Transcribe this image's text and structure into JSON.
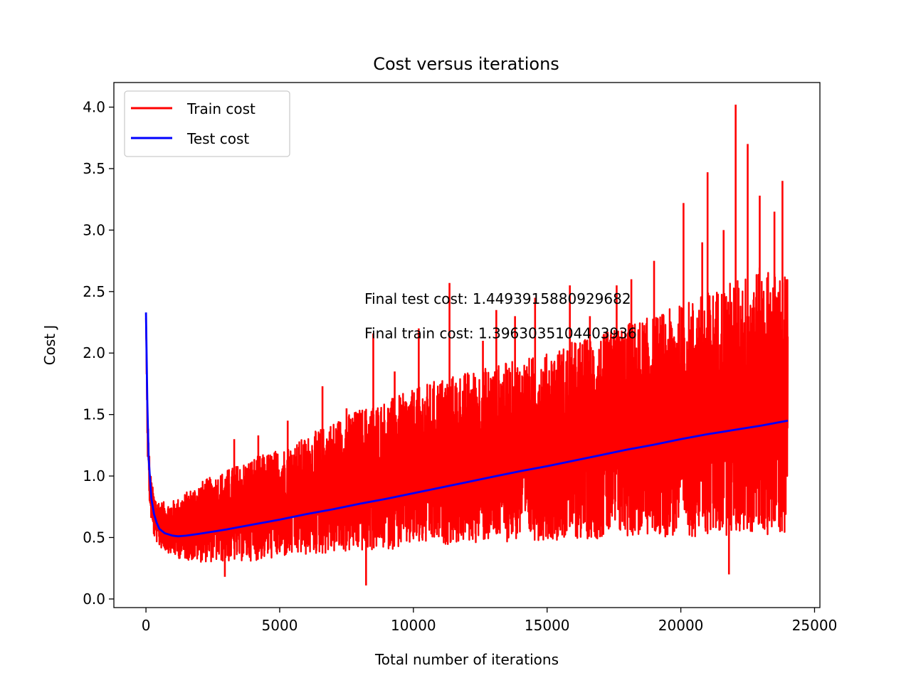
{
  "chart_data": {
    "type": "line",
    "title": "Cost versus iterations",
    "xlabel": "Total number of iterations",
    "ylabel": "Cost J",
    "xlim": [
      -1200,
      25200
    ],
    "ylim": [
      -0.07,
      4.2
    ],
    "x_ticks": [
      0,
      5000,
      10000,
      15000,
      20000,
      25000
    ],
    "y_ticks": [
      0.0,
      0.5,
      1.0,
      1.5,
      2.0,
      2.5,
      3.0,
      3.5,
      4.0
    ],
    "x_tick_labels": [
      "0",
      "5000",
      "10000",
      "15000",
      "20000",
      "25000"
    ],
    "y_tick_labels": [
      "0.0",
      "0.5",
      "1.0",
      "1.5",
      "2.0",
      "2.5",
      "3.0",
      "3.5",
      "4.0"
    ],
    "grid": false,
    "legend": "top-left",
    "series": [
      {
        "name": "Train cost",
        "color": "#ff0000",
        "style": "noisy-band",
        "x": [
          0,
          60,
          150,
          300,
          500,
          800,
          1200,
          2000,
          3000,
          4000,
          5000,
          6000,
          7000,
          8000,
          9000,
          10000,
          11000,
          12000,
          13000,
          14000,
          15000,
          16000,
          17000,
          18000,
          19000,
          20000,
          21000,
          22000,
          23000,
          24000
        ],
        "upper": [
          2.3,
          1.55,
          1.05,
          0.85,
          0.8,
          0.78,
          0.82,
          0.95,
          1.05,
          1.15,
          1.22,
          1.32,
          1.45,
          1.55,
          1.62,
          1.7,
          1.8,
          1.85,
          1.9,
          1.95,
          2.0,
          2.1,
          2.15,
          2.25,
          2.3,
          2.4,
          2.5,
          2.6,
          2.7,
          2.65
        ],
        "lower": [
          2.2,
          1.15,
          0.7,
          0.5,
          0.42,
          0.38,
          0.33,
          0.3,
          0.3,
          0.31,
          0.33,
          0.35,
          0.37,
          0.38,
          0.4,
          0.42,
          0.44,
          0.45,
          0.46,
          0.47,
          0.48,
          0.48,
          0.49,
          0.5,
          0.5,
          0.5,
          0.51,
          0.52,
          0.52,
          0.52
        ],
        "spikes": [
          {
            "x": 2950,
            "y": 0.18
          },
          {
            "x": 3300,
            "y": 1.3
          },
          {
            "x": 4200,
            "y": 1.33
          },
          {
            "x": 5300,
            "y": 1.45
          },
          {
            "x": 6600,
            "y": 1.73
          },
          {
            "x": 7500,
            "y": 1.55
          },
          {
            "x": 8230,
            "y": 0.11
          },
          {
            "x": 8500,
            "y": 2.16
          },
          {
            "x": 9300,
            "y": 1.85
          },
          {
            "x": 10200,
            "y": 2.2
          },
          {
            "x": 11350,
            "y": 2.57
          },
          {
            "x": 12600,
            "y": 2.1
          },
          {
            "x": 13100,
            "y": 2.35
          },
          {
            "x": 13800,
            "y": 2.3
          },
          {
            "x": 14550,
            "y": 2.45
          },
          {
            "x": 15850,
            "y": 2.55
          },
          {
            "x": 16600,
            "y": 2.3
          },
          {
            "x": 17600,
            "y": 2.55
          },
          {
            "x": 18150,
            "y": 2.6
          },
          {
            "x": 19000,
            "y": 2.75
          },
          {
            "x": 20100,
            "y": 3.22
          },
          {
            "x": 20800,
            "y": 2.9
          },
          {
            "x": 21000,
            "y": 3.47
          },
          {
            "x": 21600,
            "y": 3.0
          },
          {
            "x": 21800,
            "y": 0.2
          },
          {
            "x": 22050,
            "y": 4.02
          },
          {
            "x": 22500,
            "y": 3.7
          },
          {
            "x": 22950,
            "y": 3.28
          },
          {
            "x": 23500,
            "y": 3.15
          },
          {
            "x": 23800,
            "y": 3.4
          },
          {
            "x": 23950,
            "y": 2.6
          }
        ]
      },
      {
        "name": "Test cost",
        "color": "#0000ff",
        "style": "line",
        "x": [
          0,
          50,
          100,
          200,
          300,
          400,
          500,
          700,
          1000,
          1200,
          1500,
          2000,
          3000,
          4000,
          5000,
          6000,
          7000,
          8000,
          9000,
          10000,
          11000,
          12000,
          13000,
          14000,
          15000,
          16000,
          17000,
          18000,
          19000,
          20000,
          21000,
          22000,
          23000,
          24000
        ],
        "y": [
          2.33,
          1.6,
          1.15,
          0.82,
          0.69,
          0.62,
          0.57,
          0.535,
          0.515,
          0.51,
          0.515,
          0.53,
          0.565,
          0.605,
          0.645,
          0.69,
          0.73,
          0.775,
          0.815,
          0.86,
          0.905,
          0.95,
          0.995,
          1.04,
          1.08,
          1.125,
          1.17,
          1.215,
          1.255,
          1.3,
          1.34,
          1.375,
          1.41,
          1.45
        ]
      }
    ],
    "annotations": [
      {
        "text": "Final test cost: 1.4493915880929682",
        "x": 8170,
        "y": 2.4
      },
      {
        "text": "Final train cost: 1.3963035104403936",
        "x": 8170,
        "y": 2.12
      }
    ]
  }
}
